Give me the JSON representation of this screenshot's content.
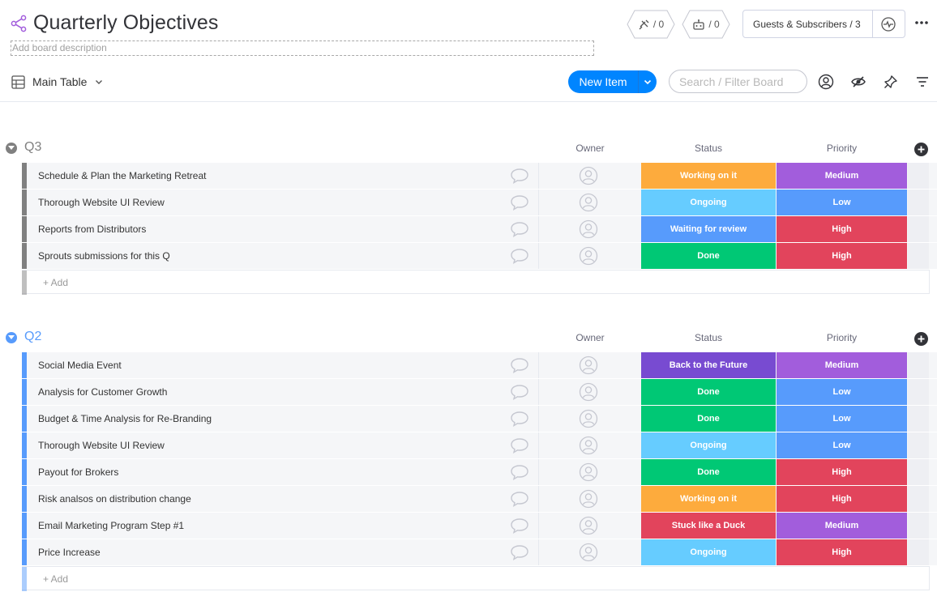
{
  "board": {
    "title": "Quarterly Objectives",
    "description_placeholder": "Add board description"
  },
  "toolbar": {
    "integrations_count": "/ 0",
    "automations_count": "/ 0",
    "guests_label": "Guests & Subscribers / 3",
    "view_label": "Main Table",
    "new_item_label": "New Item",
    "search_placeholder": "Search / Filter Board"
  },
  "columns": {
    "owner": "Owner",
    "status": "Status",
    "priority": "Priority"
  },
  "colors": {
    "working": "#fdab3d",
    "ongoing": "#66ccff",
    "waiting": "#579bfc",
    "done": "#00c875",
    "back": "#784bd1",
    "stuck": "#e2445c",
    "medium": "#a25ddc",
    "low": "#579bfc",
    "high": "#e2445c",
    "q3": "#808080",
    "q2": "#579bfc"
  },
  "groups": [
    {
      "title": "Q3",
      "add_label": "+ Add",
      "items": [
        {
          "name": "Schedule & Plan the Marketing Retreat",
          "status": "Working on it",
          "priority": "Medium"
        },
        {
          "name": "Thorough Website UI Review",
          "status": "Ongoing",
          "priority": "Low"
        },
        {
          "name": "Reports from Distributors",
          "status": "Waiting for review",
          "priority": "High"
        },
        {
          "name": "Sprouts submissions for this Q",
          "status": "Done",
          "priority": "High"
        }
      ]
    },
    {
      "title": "Q2",
      "add_label": "+ Add",
      "items": [
        {
          "name": "Social Media Event",
          "status": "Back to the Future",
          "priority": "Medium"
        },
        {
          "name": "Analysis for Customer Growth",
          "status": "Done",
          "priority": "Low"
        },
        {
          "name": "Budget & Time Analysis for Re-Branding",
          "status": "Done",
          "priority": "Low"
        },
        {
          "name": "Thorough Website UI Review",
          "status": "Ongoing",
          "priority": "Low"
        },
        {
          "name": "Payout for Brokers",
          "status": "Done",
          "priority": "High"
        },
        {
          "name": "Risk analsos on distribution change",
          "status": "Working on it",
          "priority": "High"
        },
        {
          "name": "Email Marketing Program Step #1",
          "status": "Stuck like a Duck",
          "priority": "Medium"
        },
        {
          "name": "Price Increase",
          "status": "Ongoing",
          "priority": "High"
        }
      ]
    }
  ]
}
